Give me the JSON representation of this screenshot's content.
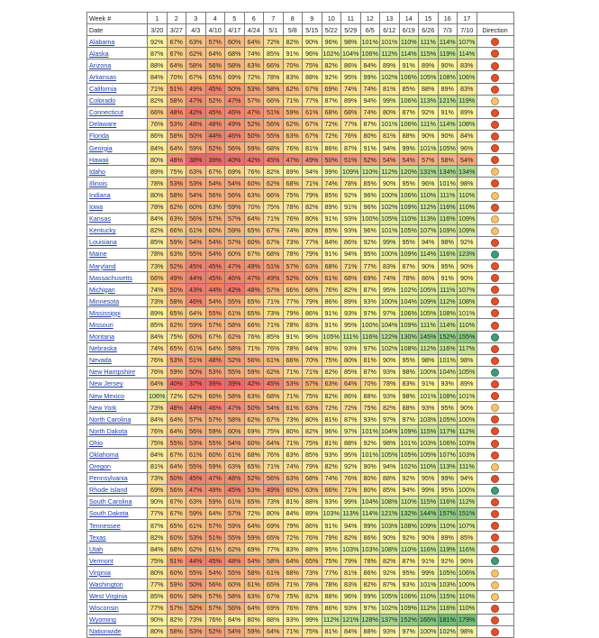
{
  "chart_data": {
    "type": "heatmap",
    "title": "",
    "row_header_week": "Week #",
    "row_header_date": "Date",
    "direction_header": "Direction",
    "weeks": [
      "1",
      "2",
      "3",
      "4",
      "5",
      "6",
      "7",
      "8",
      "9",
      "10",
      "11",
      "12",
      "13",
      "14",
      "15",
      "16",
      "17"
    ],
    "dates": [
      "3/20",
      "3/27",
      "4/3",
      "4/10",
      "4/17",
      "4/24",
      "5/1",
      "5/8",
      "5/15",
      "5/22",
      "5/29",
      "6/5",
      "6/12",
      "6/19",
      "6/26",
      "7/3",
      "7/10"
    ],
    "rows": [
      {
        "name": "Alabama",
        "values": [
          92,
          67,
          63,
          57,
          60,
          64,
          72,
          82,
          90,
          96,
          98,
          101,
          101,
          110,
          111,
          114,
          107
        ],
        "direction": "red"
      },
      {
        "name": "Alaska",
        "values": [
          87,
          67,
          62,
          64,
          68,
          74,
          85,
          91,
          96,
          102,
          104,
          106,
          112,
          114,
          115,
          119,
          114
        ],
        "direction": "red"
      },
      {
        "name": "Arizona",
        "values": [
          88,
          64,
          58,
          56,
          58,
          63,
          66,
          70,
          75,
          82,
          86,
          84,
          89,
          91,
          89,
          90,
          83
        ],
        "direction": "red"
      },
      {
        "name": "Arkansas",
        "values": [
          84,
          70,
          67,
          65,
          69,
          72,
          78,
          83,
          88,
          92,
          95,
          99,
          102,
          106,
          105,
          108,
          106
        ],
        "direction": "red"
      },
      {
        "name": "California",
        "values": [
          71,
          51,
          49,
          45,
          50,
          53,
          58,
          62,
          67,
          69,
          74,
          74,
          81,
          85,
          88,
          89,
          83
        ],
        "direction": "red"
      },
      {
        "name": "Colorado",
        "values": [
          82,
          58,
          47,
          52,
          47,
          57,
          66,
          71,
          77,
          87,
          89,
          94,
          99,
          106,
          113,
          121,
          119
        ],
        "direction": "yellow"
      },
      {
        "name": "Connecticut",
        "values": [
          66,
          48,
          42,
          45,
          46,
          47,
          51,
          59,
          61,
          68,
          68,
          74,
          80,
          87,
          92,
          91,
          89
        ],
        "direction": "red"
      },
      {
        "name": "Delaware",
        "values": [
          76,
          53,
          48,
          48,
          49,
          52,
          56,
          62,
          67,
          72,
          77,
          87,
          101,
          106,
          111,
          114,
          108
        ],
        "direction": "red"
      },
      {
        "name": "Florida",
        "values": [
          86,
          58,
          50,
          44,
          46,
          50,
          55,
          63,
          67,
          72,
          76,
          80,
          81,
          88,
          90,
          90,
          84
        ],
        "direction": "red"
      },
      {
        "name": "Georgia",
        "values": [
          84,
          64,
          59,
          52,
          56,
          59,
          68,
          76,
          81,
          86,
          87,
          91,
          94,
          99,
          101,
          105,
          96
        ],
        "direction": "red"
      },
      {
        "name": "Hawaii",
        "values": [
          80,
          48,
          38,
          39,
          40,
          42,
          45,
          47,
          49,
          50,
          51,
          52,
          54,
          54,
          57,
          58,
          54
        ],
        "direction": "red"
      },
      {
        "name": "Idaho",
        "values": [
          89,
          75,
          63,
          67,
          69,
          76,
          82,
          89,
          94,
          99,
          109,
          110,
          112,
          120,
          131,
          134,
          134
        ],
        "direction": "yellow"
      },
      {
        "name": "Illinois",
        "values": [
          78,
          53,
          53,
          54,
          54,
          60,
          62,
          68,
          71,
          74,
          78,
          85,
          90,
          95,
          96,
          101,
          98
        ],
        "direction": "red"
      },
      {
        "name": "Indiana",
        "values": [
          80,
          58,
          54,
          56,
          56,
          63,
          66,
          75,
          79,
          85,
          92,
          96,
          100,
          106,
          110,
          111,
          110
        ],
        "direction": "yellow"
      },
      {
        "name": "Iowa",
        "values": [
          78,
          62,
          60,
          63,
          59,
          70,
          75,
          78,
          82,
          89,
          91,
          96,
          102,
          109,
          112,
          116,
          110
        ],
        "direction": "red"
      },
      {
        "name": "Kansas",
        "values": [
          84,
          63,
          56,
          57,
          57,
          64,
          71,
          76,
          80,
          91,
          93,
          100,
          105,
          110,
          113,
          116,
          109
        ],
        "direction": "yellow"
      },
      {
        "name": "Kentucky",
        "values": [
          82,
          66,
          61,
          60,
          59,
          65,
          67,
          74,
          80,
          85,
          93,
          96,
          101,
          105,
          107,
          109,
          109
        ],
        "direction": "yellow"
      },
      {
        "name": "Louisiana",
        "values": [
          85,
          59,
          54,
          54,
          57,
          60,
          67,
          73,
          77,
          84,
          86,
          92,
          99,
          95,
          94,
          98,
          92
        ],
        "direction": "red"
      },
      {
        "name": "Maine",
        "values": [
          78,
          63,
          55,
          54,
          60,
          67,
          68,
          78,
          79,
          91,
          94,
          95,
          100,
          109,
          114,
          116,
          123
        ],
        "direction": "green"
      },
      {
        "name": "Maryland",
        "values": [
          73,
          52,
          45,
          45,
          47,
          49,
          51,
          57,
          63,
          68,
          71,
          77,
          83,
          87,
          90,
          95,
          90
        ],
        "direction": "red"
      },
      {
        "name": "Massachusetts",
        "values": [
          66,
          49,
          44,
          45,
          46,
          47,
          49,
          52,
          60,
          61,
          68,
          69,
          74,
          78,
          86,
          91,
          90
        ],
        "direction": "red"
      },
      {
        "name": "Michigan",
        "values": [
          74,
          50,
          43,
          44,
          42,
          48,
          57,
          66,
          68,
          76,
          82,
          87,
          95,
          102,
          105,
          111,
          107
        ],
        "direction": "red"
      },
      {
        "name": "Minnesota",
        "values": [
          73,
          58,
          46,
          54,
          55,
          65,
          71,
          77,
          79,
          86,
          89,
          93,
          100,
          104,
          109,
          112,
          108
        ],
        "direction": "red"
      },
      {
        "name": "Mississippi",
        "values": [
          89,
          65,
          64,
          55,
          61,
          65,
          73,
          79,
          86,
          91,
          93,
          97,
          97,
          106,
          105,
          108,
          101
        ],
        "direction": "red"
      },
      {
        "name": "Missouri",
        "values": [
          85,
          62,
          59,
          57,
          58,
          66,
          71,
          78,
          83,
          91,
          95,
          100,
          104,
          109,
          111,
          114,
          110
        ],
        "direction": "red"
      },
      {
        "name": "Montana",
        "values": [
          84,
          75,
          60,
          67,
          62,
          76,
          85,
          91,
          96,
          105,
          111,
          116,
          122,
          130,
          145,
          152,
          155
        ],
        "direction": "green"
      },
      {
        "name": "Nebraska",
        "values": [
          74,
          65,
          61,
          64,
          58,
          71,
          76,
          78,
          84,
          90,
          93,
          97,
          102,
          108,
          112,
          116,
          117
        ],
        "direction": "red"
      },
      {
        "name": "Nevada",
        "values": [
          76,
          53,
          51,
          48,
          52,
          56,
          61,
          66,
          70,
          75,
          80,
          81,
          90,
          95,
          98,
          101,
          98
        ],
        "direction": "red"
      },
      {
        "name": "New Hampshire",
        "values": [
          76,
          59,
          50,
          53,
          55,
          59,
          62,
          71,
          71,
          82,
          85,
          87,
          93,
          98,
          100,
          104,
          105
        ],
        "direction": "green"
      },
      {
        "name": "New Jersey",
        "values": [
          64,
          40,
          37,
          39,
          39,
          42,
          45,
          53,
          57,
          63,
          64,
          70,
          78,
          83,
          91,
          93,
          89
        ],
        "direction": "red"
      },
      {
        "name": "New Mexico",
        "values": [
          106,
          72,
          62,
          60,
          58,
          63,
          68,
          71,
          75,
          82,
          86,
          88,
          93,
          98,
          101,
          108,
          101
        ],
        "direction": "red"
      },
      {
        "name": "New York",
        "values": [
          73,
          48,
          44,
          46,
          47,
          50,
          54,
          61,
          63,
          72,
          72,
          75,
          82,
          88,
          93,
          95,
          90
        ],
        "direction": "yellow"
      },
      {
        "name": "North Carolina",
        "values": [
          84,
          64,
          57,
          57,
          58,
          62,
          67,
          73,
          80,
          81,
          87,
          93,
          97,
          97,
          103,
          105,
          100
        ],
        "direction": "red"
      },
      {
        "name": "North Dakota",
        "values": [
          76,
          64,
          56,
          59,
          60,
          69,
          75,
          80,
          82,
          96,
          97,
          101,
          104,
          109,
          115,
          117,
          112
        ],
        "direction": "red"
      },
      {
        "name": "Ohio",
        "values": [
          75,
          55,
          53,
          55,
          54,
          60,
          64,
          71,
          75,
          81,
          88,
          92,
          98,
          101,
          103,
          106,
          103
        ],
        "direction": "red"
      },
      {
        "name": "Oklahoma",
        "values": [
          84,
          67,
          61,
          60,
          61,
          68,
          76,
          83,
          85,
          93,
          95,
          101,
          105,
          105,
          105,
          107,
          103
        ],
        "direction": "red"
      },
      {
        "name": "Oregon",
        "values": [
          81,
          64,
          55,
          59,
          63,
          65,
          71,
          74,
          79,
          82,
          92,
          90,
          94,
          102,
          110,
          113,
          111
        ],
        "direction": "yellow"
      },
      {
        "name": "Pennsylvania",
        "values": [
          73,
          50,
          45,
          47,
          48,
          52,
          56,
          63,
          68,
          74,
          76,
          80,
          88,
          92,
          95,
          99,
          94
        ],
        "direction": "red"
      },
      {
        "name": "Rhode Island",
        "values": [
          69,
          56,
          47,
          49,
          45,
          53,
          49,
          60,
          63,
          66,
          71,
          80,
          85,
          94,
          99,
          95,
          100
        ],
        "direction": "green"
      },
      {
        "name": "South Carolina",
        "values": [
          90,
          67,
          63,
          59,
          61,
          65,
          73,
          81,
          88,
          93,
          99,
          104,
          108,
          110,
          115,
          116,
          112
        ],
        "direction": "red"
      },
      {
        "name": "South Dakota",
        "values": [
          77,
          67,
          59,
          64,
          57,
          72,
          80,
          84,
          89,
          103,
          113,
          114,
          121,
          132,
          144,
          157,
          151
        ],
        "direction": "red"
      },
      {
        "name": "Tennessee",
        "values": [
          87,
          65,
          61,
          57,
          59,
          64,
          69,
          79,
          86,
          91,
          94,
          99,
          103,
          108,
          109,
          110,
          107
        ],
        "direction": "red"
      },
      {
        "name": "Texas",
        "values": [
          82,
          60,
          53,
          51,
          55,
          59,
          65,
          72,
          76,
          79,
          82,
          86,
          90,
          92,
          90,
          89,
          85
        ],
        "direction": "red"
      },
      {
        "name": "Utah",
        "values": [
          84,
          68,
          62,
          61,
          62,
          69,
          77,
          83,
          88,
          95,
          103,
          103,
          108,
          110,
          116,
          119,
          116
        ],
        "direction": "red"
      },
      {
        "name": "Vermont",
        "values": [
          75,
          51,
          44,
          45,
          48,
          54,
          58,
          64,
          65,
          75,
          79,
          78,
          82,
          87,
          91,
          92,
          96
        ],
        "direction": "green"
      },
      {
        "name": "Virginia",
        "values": [
          80,
          60,
          55,
          54,
          55,
          58,
          61,
          68,
          73,
          77,
          81,
          86,
          92,
          95,
          99,
          105,
          106
        ],
        "direction": "yellow"
      },
      {
        "name": "Washington",
        "values": [
          77,
          59,
          50,
          56,
          60,
          61,
          65,
          71,
          78,
          78,
          83,
          82,
          87,
          93,
          101,
          103,
          100
        ],
        "direction": "yellow"
      },
      {
        "name": "West Virginia",
        "values": [
          85,
          60,
          58,
          57,
          58,
          63,
          67,
          75,
          82,
          88,
          96,
          99,
          105,
          106,
          110,
          115,
          110
        ],
        "direction": "yellow"
      },
      {
        "name": "Wisconsin",
        "values": [
          77,
          57,
          52,
          57,
          56,
          64,
          69,
          76,
          78,
          86,
          93,
          97,
          102,
          109,
          112,
          116,
          110
        ],
        "direction": "red"
      },
      {
        "name": "Wyoming",
        "values": [
          90,
          82,
          73,
          76,
          84,
          80,
          88,
          93,
          99,
          112,
          121,
          128,
          137,
          152,
          165,
          181,
          179
        ],
        "direction": "red"
      },
      {
        "name": "Nationwide",
        "values": [
          80,
          58,
          53,
          52,
          54,
          59,
          64,
          71,
          75,
          81,
          84,
          88,
          93,
          97,
          100,
          102,
          98
        ],
        "direction": "red"
      }
    ],
    "direction_colors": {
      "red": "#e0502c",
      "yellow": "#f5c46b",
      "green": "#3f9a7a"
    }
  }
}
